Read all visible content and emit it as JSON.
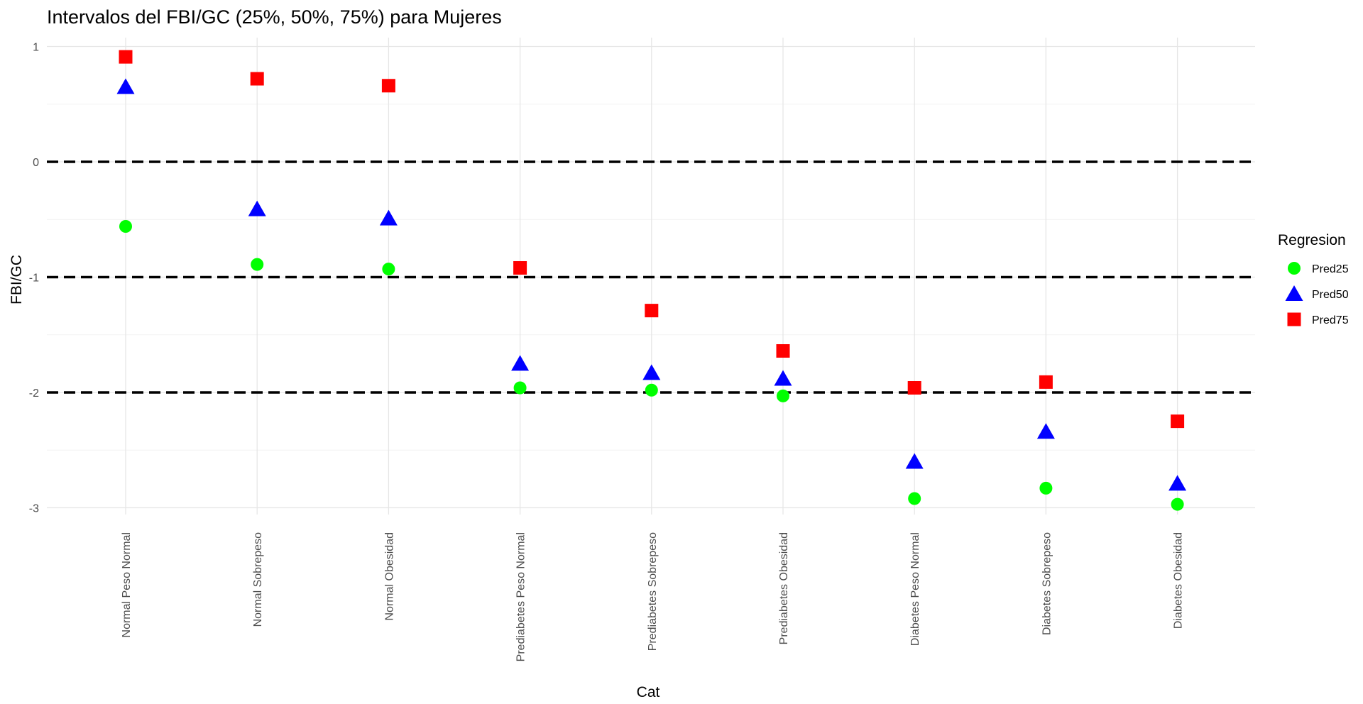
{
  "chart_data": {
    "type": "scatter",
    "title": "Intervalos del FBI/GC (25%, 50%, 75%) para Mujeres",
    "xlabel": "Cat",
    "ylabel": "FBI/GC",
    "categories": [
      "Normal Peso Normal",
      "Normal Sobrepeso",
      "Normal Obesidad",
      "Prediabetes Peso Normal",
      "Prediabetes Sobrepeso",
      "Prediabetes Obesidad",
      "Diabetes Peso Normal",
      "Diabetes Sobrepeso",
      "Diabetes Obesidad"
    ],
    "yticks": [
      1,
      0,
      -1,
      -2,
      -3
    ],
    "ylim": [
      -3.08,
      1.05
    ],
    "reference_lines": [
      0,
      -1,
      -2
    ],
    "legend_title": "Regresion",
    "legend_position": "right",
    "series": [
      {
        "name": "Pred25",
        "shape": "circle",
        "color": "#00ff00",
        "values": [
          -0.56,
          -0.89,
          -0.93,
          -1.96,
          -1.98,
          -2.03,
          -2.92,
          -2.83,
          -2.97
        ]
      },
      {
        "name": "Pred50",
        "shape": "triangle",
        "color": "#0000ff",
        "values": [
          0.65,
          -0.41,
          -0.49,
          -1.75,
          -1.83,
          -1.88,
          -2.6,
          -2.34,
          -2.79
        ]
      },
      {
        "name": "Pred75",
        "shape": "square",
        "color": "#ff0000",
        "values": [
          0.91,
          0.72,
          0.66,
          -0.92,
          -1.29,
          -1.64,
          -1.96,
          -1.91,
          -2.25
        ]
      }
    ]
  }
}
